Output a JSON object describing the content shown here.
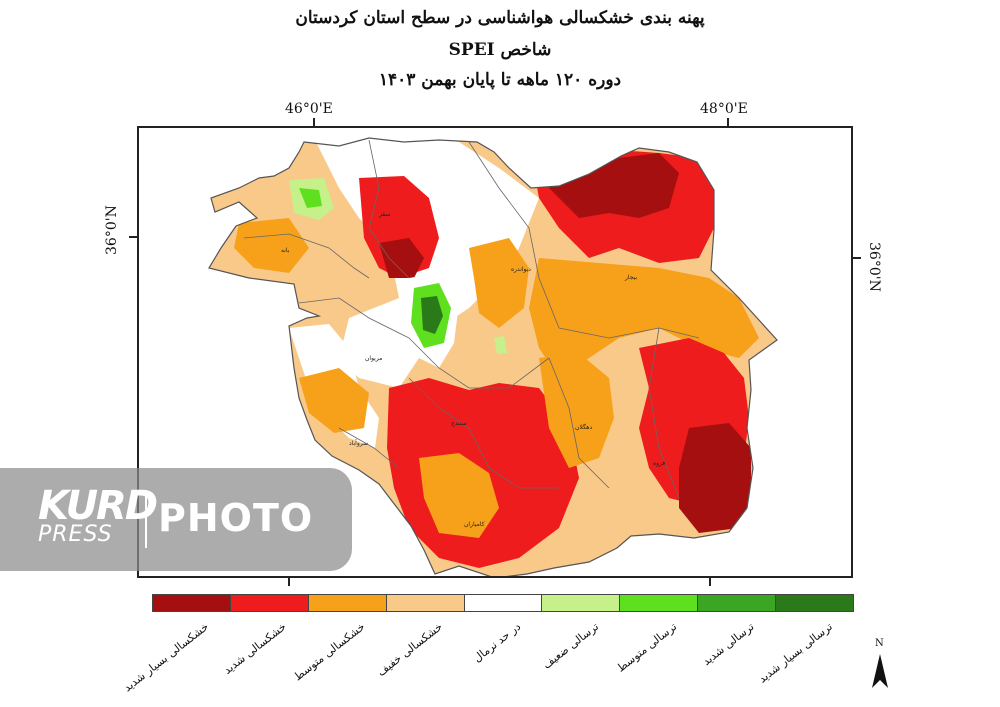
{
  "title": {
    "line1": "پهنه بندی خشکسالی هواشناسی در سطح استان کردستان",
    "line2": "شاخص SPEI",
    "line3": "دوره ۱۲۰ ماهه تا پایان بهمن ۱۴۰۳"
  },
  "coordinates": {
    "lon1": "46°0'E",
    "lon2": "48°0'E",
    "lat": "36°0'N"
  },
  "cities": [
    "بانه",
    "سقز",
    "دیواندره",
    "بیجار",
    "مریوان",
    "سنندج",
    "سروآباد",
    "دهگلان",
    "قروه",
    "کامیاران"
  ],
  "legend": [
    {
      "label": "خشکسالی بسیار شدید",
      "color": "#a50f0f"
    },
    {
      "label": "خشکسالی شدید",
      "color": "#ee1c1c"
    },
    {
      "label": "خشکسالی متوسط",
      "color": "#f7a11a"
    },
    {
      "label": "خشکسالی خفیف",
      "color": "#f9c98a"
    },
    {
      "label": "در حد نرمال",
      "color": "#ffffff"
    },
    {
      "label": "ترسالی ضعیف",
      "color": "#c6f08a"
    },
    {
      "label": "ترسالی متوسط",
      "color": "#5ee01f"
    },
    {
      "label": "ترسالی شدید",
      "color": "#3aa624"
    },
    {
      "label": "ترسالی بسیار شدید",
      "color": "#2a7a1a"
    }
  ],
  "north_label": "N",
  "watermark": {
    "brand_top": "KURD",
    "brand_bottom": "PRESS",
    "word": "PHOTO"
  }
}
